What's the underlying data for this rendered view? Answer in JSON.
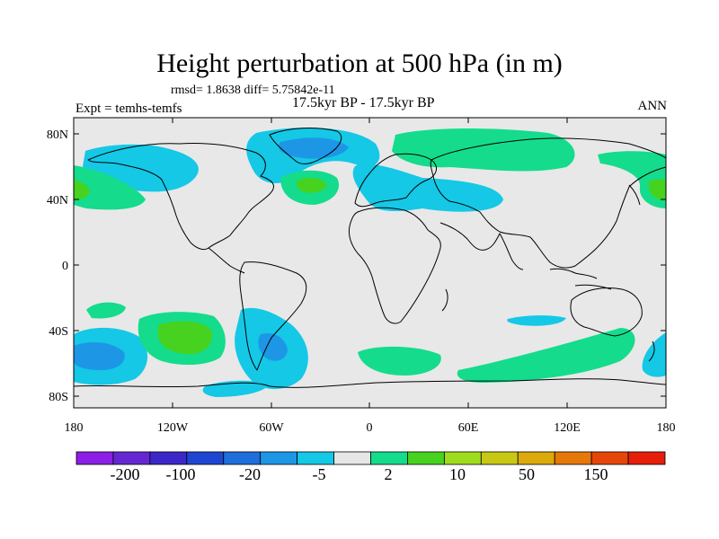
{
  "header": {
    "title": "Height perturbation at 500 hPa (in m)",
    "stats": "rmsd= 1.8638 diff= 5.75842e-11",
    "period": "17.5kyr BP - 17.5kyr BP",
    "experiment": "Expt = temhs-temfs",
    "season": "ANN"
  },
  "map": {
    "background_color": "#e8e8e8",
    "coastline_color": "#000000",
    "lat_ticks": [
      "80N",
      "40N",
      "0",
      "40S",
      "80S"
    ],
    "lon_ticks": [
      "180",
      "120W",
      "60W",
      "0",
      "60E",
      "120E",
      "180"
    ]
  },
  "colorbar": {
    "colors": [
      "#8c1ee6",
      "#6428d2",
      "#3c28c8",
      "#1e46d2",
      "#1e6edc",
      "#1e96e6",
      "#14c8e6",
      "#e6e6e6",
      "#14dc8c",
      "#46d21e",
      "#a0dc1e",
      "#c8c814",
      "#dcaa0a",
      "#e6780a",
      "#e6460a",
      "#e61e0a"
    ],
    "labels": [
      "-200",
      "-100",
      "-20",
      "-5",
      "2",
      "10",
      "50",
      "150"
    ]
  }
}
